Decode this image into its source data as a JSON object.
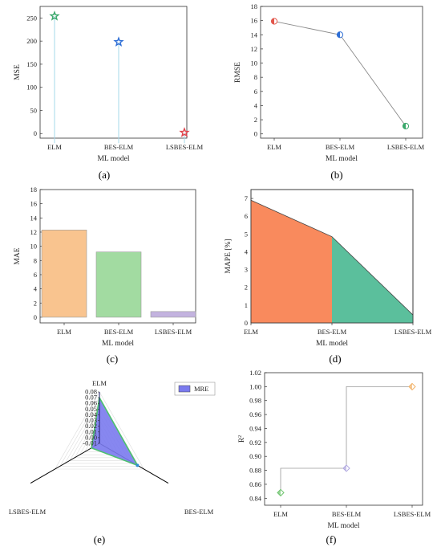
{
  "chart_data": [
    {
      "id": "a",
      "type": "scatter",
      "marker": "star",
      "caption": "(a)",
      "xlabel": "ML model",
      "ylabel": "MSE",
      "categories": [
        "ELM",
        "BES-ELM",
        "LSBES-ELM"
      ],
      "values": [
        254,
        198,
        2
      ],
      "colors": [
        "#3aa86b",
        "#2f6fd6",
        "#e0434b"
      ],
      "ylim": [
        -10,
        275
      ],
      "yticks": [
        0,
        50,
        100,
        150,
        200,
        250
      ]
    },
    {
      "id": "b",
      "type": "line",
      "marker": "half-circle",
      "caption": "(b)",
      "xlabel": "ML model",
      "ylabel": "RMSE",
      "categories": [
        "ELM",
        "BES-ELM",
        "LSBES-ELM"
      ],
      "values": [
        15.9,
        14.0,
        1.1
      ],
      "colors": [
        "#e2574c",
        "#2f6fd6",
        "#3aa86b"
      ],
      "ylim": [
        -0.6,
        18
      ],
      "yticks": [
        0,
        2,
        4,
        6,
        8,
        10,
        12,
        14,
        16,
        18
      ]
    },
    {
      "id": "c",
      "type": "bar",
      "caption": "(c)",
      "xlabel": "ML model",
      "ylabel": "MAE",
      "categories": [
        "ELM",
        "BES-ELM",
        "LSBES-ELM"
      ],
      "values": [
        12.3,
        9.2,
        0.8
      ],
      "colors": [
        "#f9c48f",
        "#a2dba1",
        "#c3b3df"
      ],
      "ylim": [
        -0.8,
        18
      ],
      "yticks": [
        0,
        2,
        4,
        6,
        8,
        10,
        12,
        14,
        16,
        18
      ]
    },
    {
      "id": "d",
      "type": "area",
      "caption": "(d)",
      "xlabel": "ML model",
      "ylabel": "MAPE [%]",
      "categories": [
        "ELM",
        "BES-ELM",
        "LSBES-ELM"
      ],
      "values": [
        6.9,
        4.85,
        0.45
      ],
      "colors": [
        "#f98a5d",
        "#5bbf9c"
      ],
      "ylim": [
        0,
        7.5
      ],
      "yticks": [
        0,
        1,
        2,
        3,
        4,
        5,
        6,
        7
      ]
    },
    {
      "id": "e",
      "type": "radar",
      "caption": "(e)",
      "axes": [
        "ELM",
        "BES-ELM",
        "LSBES-ELM"
      ],
      "series": [
        {
          "name": "MRE",
          "values": [
            0.07,
            0.067,
            0.006
          ]
        }
      ],
      "rlim": [
        -0.01,
        0.08
      ],
      "rticks": [
        -0.01,
        0.0,
        0.01,
        0.02,
        0.03,
        0.04,
        0.05,
        0.06,
        0.07,
        0.08
      ],
      "rtick_labels": [
        "-0.01",
        "0.00",
        "0.01",
        "0.02",
        "0.03",
        "0.04",
        "0.05",
        "0.06",
        "0.07",
        "0.08"
      ],
      "colors": {
        "fill": "#7a7aee",
        "edge": "#4cc16e",
        "axis": "#1a1a66"
      }
    },
    {
      "id": "f",
      "type": "step",
      "marker": "diamond",
      "caption": "(f)",
      "xlabel": "ML model",
      "ylabel": "R2",
      "categories": [
        "ELM",
        "BES-ELM",
        "LSBES-ELM"
      ],
      "values": [
        0.848,
        0.883,
        1.0
      ],
      "colors": [
        "#6cc36c",
        "#b0a8e0",
        "#f2b36b"
      ],
      "ylim": [
        0.83,
        1.02
      ],
      "yticks": [
        0.84,
        0.86,
        0.88,
        0.9,
        0.92,
        0.94,
        0.96,
        0.98,
        1.0,
        1.02
      ],
      "ytick_labels": [
        "0.84",
        "0.86",
        "0.88",
        "0.90",
        "0.92",
        "0.94",
        "0.96",
        "0.98",
        "1.00",
        "1.02"
      ]
    }
  ]
}
